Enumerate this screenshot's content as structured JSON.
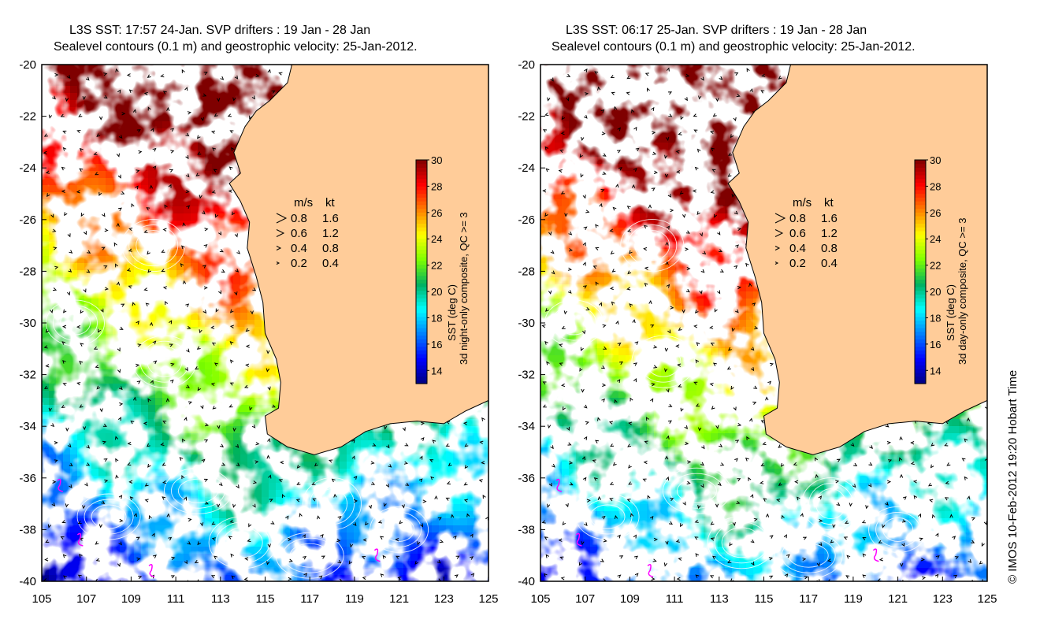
{
  "panels": [
    {
      "title_line1": "L3S SST: 17:57 24-Jan. SVP drifters : 19 Jan - 28 Jan",
      "title_line2": "Sealevel contours (0.1 m) and geostrophic velocity: 25-Jan-2012.",
      "colorbar_label_line1": "SST (deg C)",
      "colorbar_label_line2": "3d night-only composite, QC >= 3",
      "cloud_fraction": 0.35
    },
    {
      "title_line1": "L3S SST: 06:17 25-Jan. SVP drifters : 19 Jan - 28 Jan",
      "title_line2": "Sealevel contours (0.1 m) and geostrophic velocity: 25-Jan-2012.",
      "colorbar_label_line1": "SST (deg C)",
      "colorbar_label_line2": "3d day-only composite, QC >= 3",
      "cloud_fraction": 0.3
    }
  ],
  "map": {
    "lon_range": [
      105,
      125
    ],
    "lat_range": [
      -40,
      -20
    ],
    "lon_ticks": [
      "105",
      "107",
      "109",
      "111",
      "113",
      "115",
      "117",
      "119",
      "121",
      "123",
      "125"
    ],
    "lat_ticks": [
      "-20",
      "-22",
      "-24",
      "-26",
      "-28",
      "-30",
      "-32",
      "-34",
      "-36",
      "-38",
      "-40"
    ],
    "land_color": "#FFCC99",
    "cloud_color": "#FFFFFF",
    "contour_color": "#FFFFFF",
    "drifter_color": "#FF00FF"
  },
  "colorbar": {
    "range": [
      13,
      30
    ],
    "ticks": [
      "30",
      "28",
      "26",
      "24",
      "22",
      "20",
      "18",
      "16",
      "14"
    ],
    "colors": [
      "#00007F",
      "#0000FF",
      "#007FFF",
      "#00FFFF",
      "#00B060",
      "#7FFF00",
      "#FFFF00",
      "#FF7F00",
      "#FF0000",
      "#7F0000"
    ]
  },
  "velocity_legend": {
    "header_ms": "m/s",
    "header_kt": "kt",
    "rows": [
      {
        "ms": "0.8",
        "kt": "1.6"
      },
      {
        "ms": "0.6",
        "kt": "1.2"
      },
      {
        "ms": "0.4",
        "kt": "0.8"
      },
      {
        "ms": "0.2",
        "kt": "0.4"
      }
    ]
  },
  "credit": "© IMOS 10-Feb-2012 19:20 Hobart Time"
}
